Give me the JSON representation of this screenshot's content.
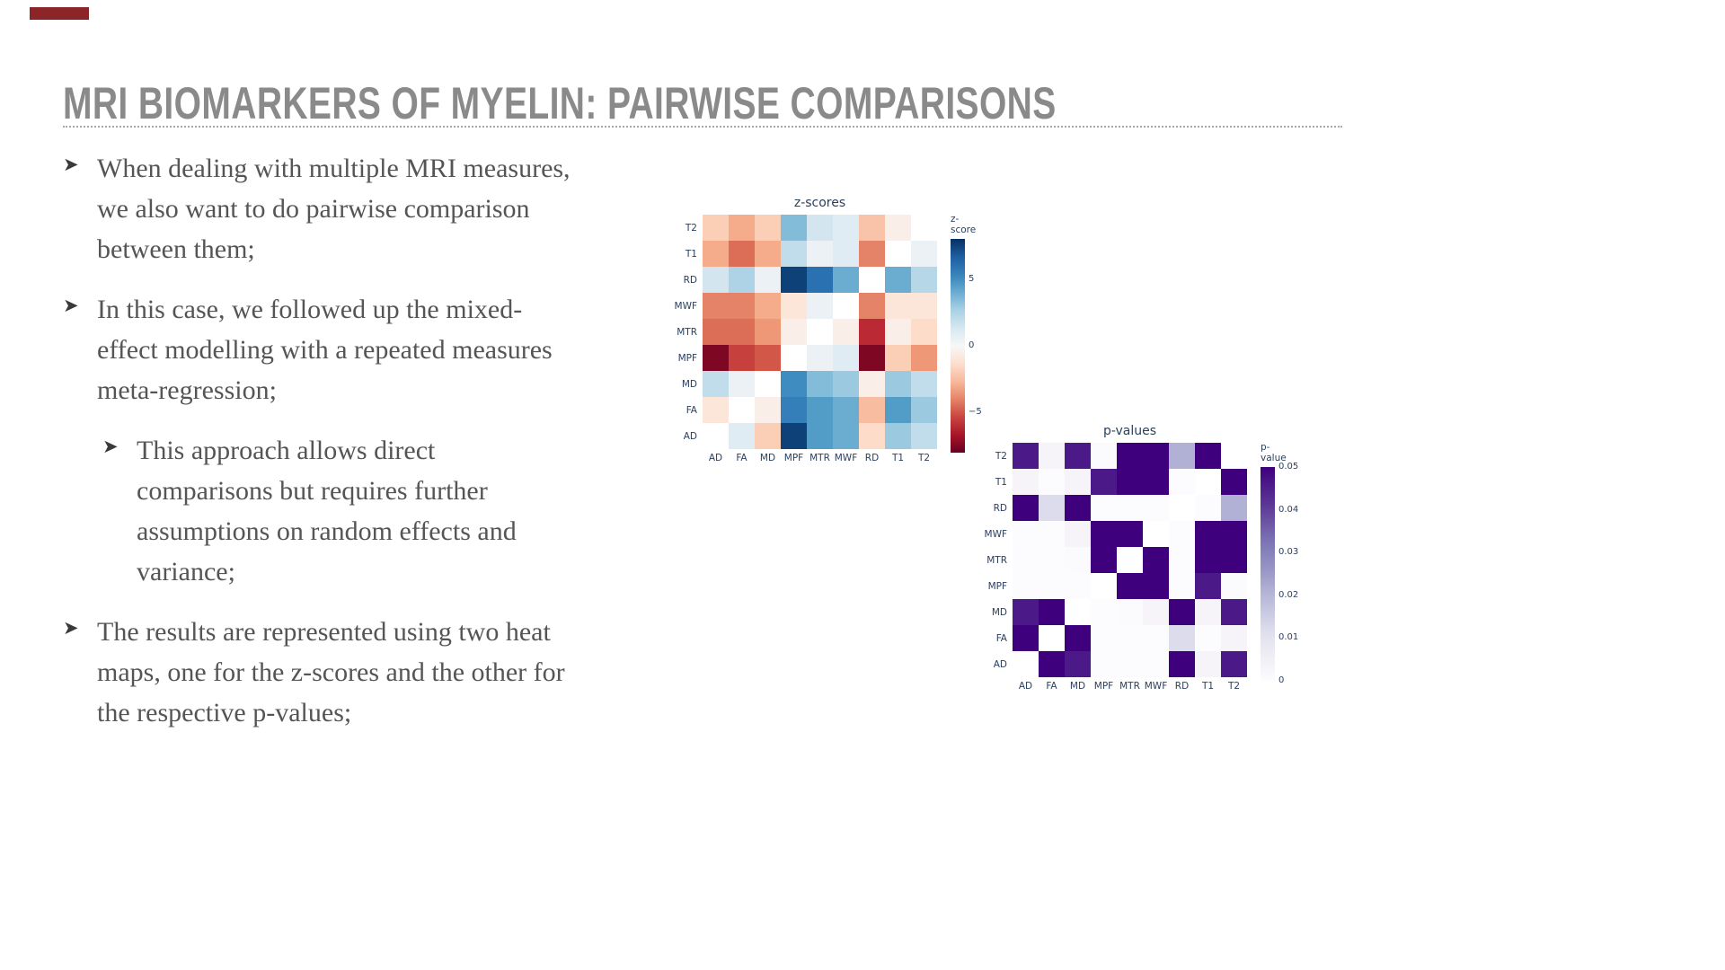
{
  "accent_color": "#8b2528",
  "title": "MRI BIOMARKERS OF MYELIN: PAIRWISE COMPARISONS",
  "bullet_marker": "➤",
  "bullets": [
    {
      "level": 1,
      "text": "When dealing with multiple MRI measures, we also want to do pairwise comparison between them;"
    },
    {
      "level": 1,
      "text": "In this case, we followed up the mixed-effect modelling with a repeated measures meta-regression;"
    },
    {
      "level": 2,
      "text": "This approach allows direct comparisons but requires further assumptions on random effects and variance;"
    },
    {
      "level": 1,
      "text": "The results are represented using two heat maps, one for the z-scores and the other for the respective p-values;"
    }
  ],
  "chart_data": [
    {
      "type": "heatmap",
      "title": "z-scores",
      "x_categories": [
        "AD",
        "FA",
        "MD",
        "MPF",
        "MTR",
        "MWF",
        "RD",
        "T1",
        "T2"
      ],
      "y_categories": [
        "T2",
        "T1",
        "RD",
        "MWF",
        "MTR",
        "MPF",
        "MD",
        "FA",
        "AD"
      ],
      "values": [
        [
          -2.0,
          -3.0,
          -2.0,
          3.5,
          1.5,
          1.0,
          -2.3,
          -0.5,
          null
        ],
        [
          -3.0,
          -4.5,
          -3.0,
          2.0,
          0.5,
          1.0,
          -4.0,
          null,
          0.5
        ],
        [
          1.5,
          2.5,
          0.5,
          7.5,
          6.0,
          4.0,
          null,
          4.0,
          2.3
        ],
        [
          -4.0,
          -4.0,
          -3.0,
          -1.0,
          0.5,
          null,
          -4.0,
          -1.0,
          -1.0
        ],
        [
          -4.5,
          -4.5,
          -3.5,
          -0.5,
          null,
          -0.5,
          -6.0,
          -0.5,
          -1.5
        ],
        [
          -7.5,
          -5.5,
          -5.0,
          null,
          0.5,
          1.0,
          -7.5,
          -2.0,
          -3.5
        ],
        [
          2.0,
          0.5,
          null,
          5.0,
          3.5,
          3.0,
          -0.5,
          3.0,
          2.0
        ],
        [
          -1.0,
          null,
          -0.5,
          5.5,
          4.5,
          4.0,
          -2.5,
          4.5,
          3.0
        ],
        [
          null,
          1.0,
          -2.0,
          7.5,
          4.5,
          4.0,
          -1.5,
          3.0,
          2.0
        ]
      ],
      "colorbar": {
        "title": "z-score",
        "range": [
          -8,
          8
        ],
        "ticks": [
          {
            "label": "5",
            "value": 5
          },
          {
            "label": "0",
            "value": 0
          },
          {
            "label": "−5",
            "value": -5
          }
        ],
        "colormap": "RdBu",
        "colormap_stops": [
          "#67001f",
          "#b2182b",
          "#d6604d",
          "#f4a582",
          "#fddbc7",
          "#f7f7f7",
          "#d1e5f0",
          "#92c5de",
          "#4393c3",
          "#2166ac",
          "#053061"
        ]
      }
    },
    {
      "type": "heatmap",
      "title": "p-values",
      "x_categories": [
        "AD",
        "FA",
        "MD",
        "MPF",
        "MTR",
        "MWF",
        "RD",
        "T1",
        "T2"
      ],
      "y_categories": [
        "T2",
        "T1",
        "RD",
        "MWF",
        "MTR",
        "MPF",
        "MD",
        "FA",
        "AD"
      ],
      "values": [
        [
          0.046,
          0.003,
          0.046,
          0.0005,
          0.05,
          0.05,
          0.021,
          0.05,
          null
        ],
        [
          0.003,
          0.0,
          0.003,
          0.046,
          0.05,
          0.05,
          0.0,
          null,
          0.05
        ],
        [
          0.05,
          0.012,
          0.05,
          0.0,
          0.0,
          0.0,
          null,
          0.0,
          0.021
        ],
        [
          0.0,
          0.0,
          0.003,
          0.05,
          0.05,
          null,
          0.0,
          0.05,
          0.05
        ],
        [
          0.0,
          0.0,
          0.0005,
          0.05,
          null,
          0.05,
          0.0,
          0.05,
          0.05
        ],
        [
          0.0,
          0.0,
          0.0,
          null,
          0.05,
          0.05,
          0.0,
          0.046,
          0.0005
        ],
        [
          0.046,
          0.05,
          null,
          0.0,
          0.0005,
          0.003,
          0.05,
          0.003,
          0.046
        ],
        [
          0.05,
          null,
          0.05,
          0.0,
          0.0,
          0.0,
          0.012,
          0.0,
          0.003
        ],
        [
          null,
          0.05,
          0.046,
          0.0,
          0.0,
          0.0,
          0.05,
          0.003,
          0.046
        ]
      ],
      "colorbar": {
        "title": "p-value",
        "range": [
          0,
          0.05
        ],
        "ticks": [
          {
            "label": "0.05",
            "value": 0.05
          },
          {
            "label": "0.04",
            "value": 0.04
          },
          {
            "label": "0.03",
            "value": 0.03
          },
          {
            "label": "0.02",
            "value": 0.02
          },
          {
            "label": "0.01",
            "value": 0.01
          },
          {
            "label": "0",
            "value": 0
          }
        ],
        "colormap": "Purples",
        "colormap_stops": [
          "#fcfbfd",
          "#efedf5",
          "#dadaeb",
          "#bcbddc",
          "#9e9ac8",
          "#807dba",
          "#6a51a3",
          "#54278f",
          "#3f007d"
        ]
      }
    }
  ]
}
